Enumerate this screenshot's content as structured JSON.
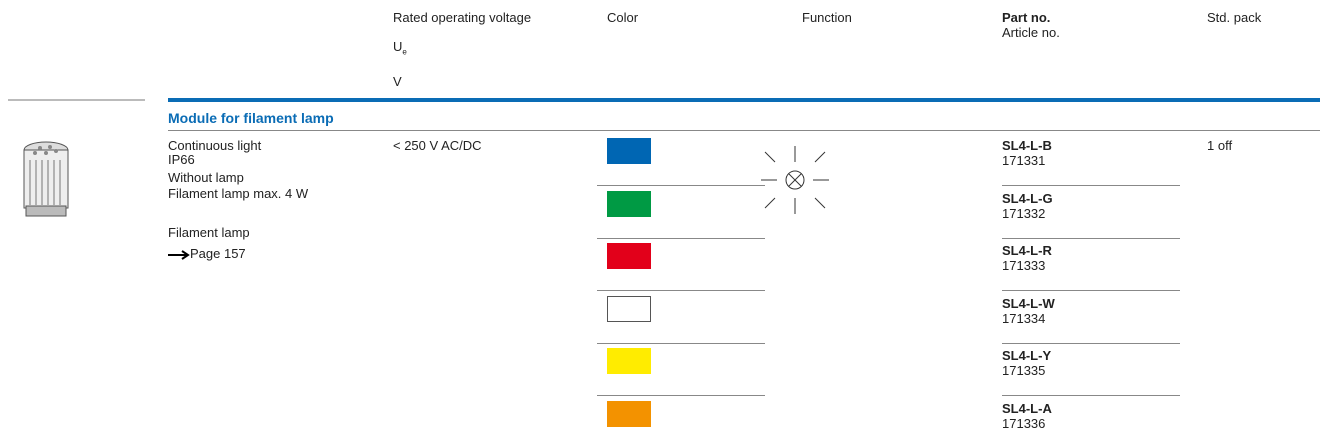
{
  "header": {
    "voltage": "Rated operating voltage",
    "voltage_symbol": "U",
    "voltage_subscript": "e",
    "voltage_unit": "V",
    "color": "Color",
    "function": "Function",
    "part_no": "Part no.",
    "article_no": "Article no.",
    "std_pack": "Std. pack"
  },
  "section": {
    "title": "Module for filament lamp",
    "description": [
      "Continuous light",
      "IP66",
      "Without lamp",
      "Filament lamp max. 4 W",
      "Filament lamp"
    ],
    "reference": "Page 157",
    "voltage": "< 250 V AC/DC",
    "std_pack": "1 off",
    "variants": [
      {
        "color": "#0066b3",
        "part_no": "SL4-L-B",
        "article_no": "171331"
      },
      {
        "color": "#009a44",
        "part_no": "SL4-L-G",
        "article_no": "171332"
      },
      {
        "color": "#e2001a",
        "part_no": "SL4-L-R",
        "article_no": "171333"
      },
      {
        "color": "#ffffff",
        "part_no": "SL4-L-W",
        "article_no": "171334"
      },
      {
        "color": "#ffec00",
        "part_no": "SL4-L-Y",
        "article_no": "171335"
      },
      {
        "color": "#f39200",
        "part_no": "SL4-L-A",
        "article_no": "171336"
      }
    ]
  }
}
